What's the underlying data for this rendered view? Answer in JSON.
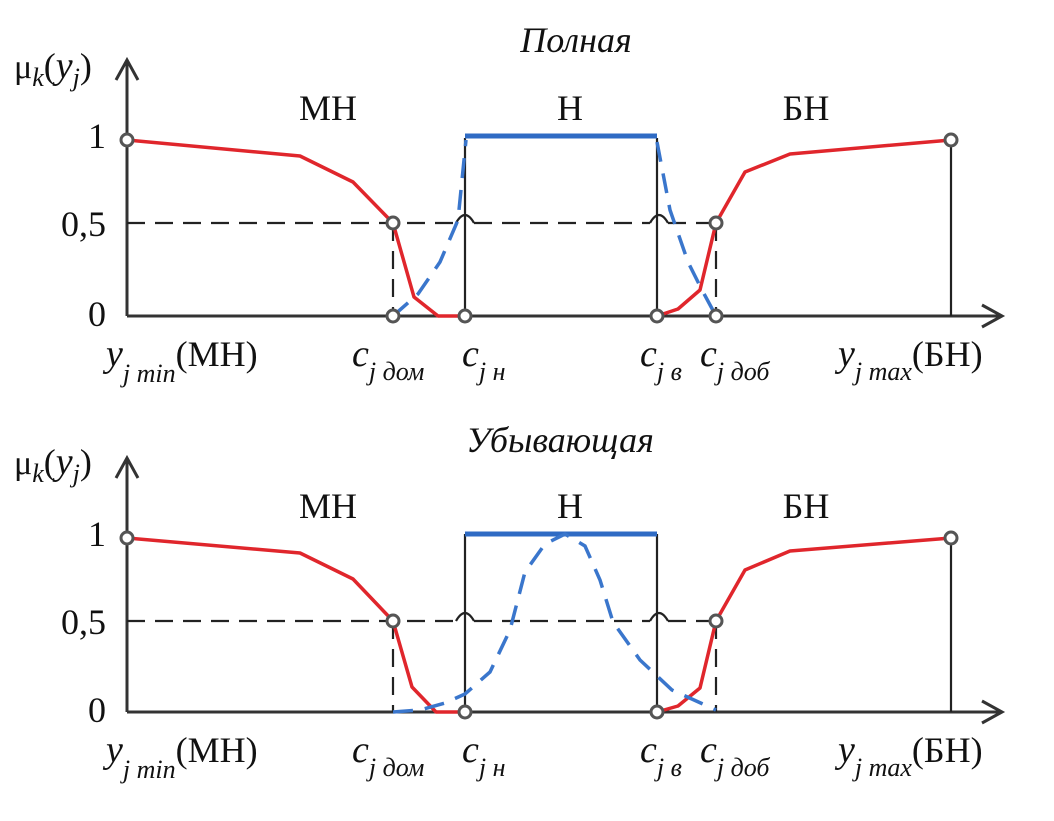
{
  "figure": {
    "panels": [
      {
        "title": "Полная",
        "y_axis": {
          "label": "μk(yj)",
          "ticks": [
            "1",
            "0,5",
            "0"
          ]
        },
        "sets": {
          "left": "МН",
          "middle": "Н",
          "right": "БН"
        },
        "x_labels": {
          "ymin": {
            "var": "y",
            "sub": "j min",
            "suffix": "(МН)"
          },
          "cdom": {
            "var": "c",
            "sub": "j дом"
          },
          "cn": {
            "var": "c",
            "sub": "j н"
          },
          "cv": {
            "var": "c",
            "sub": "j в"
          },
          "cdob": {
            "var": "c",
            "sub": "j доб"
          },
          "ymax": {
            "var": "y",
            "sub": "j max",
            "suffix": "(БН)"
          }
        }
      },
      {
        "title": "Убывающая",
        "y_axis": {
          "label": "μk(yj)",
          "ticks": [
            "1",
            "0,5",
            "0"
          ]
        },
        "sets": {
          "left": "МН",
          "middle": "Н",
          "right": "БН"
        },
        "x_labels": {
          "ymin": {
            "var": "y",
            "sub": "j min",
            "suffix": "(МН)"
          },
          "cdom": {
            "var": "c",
            "sub": "j дом"
          },
          "cn": {
            "var": "c",
            "sub": "j н"
          },
          "cv": {
            "var": "c",
            "sub": "j в"
          },
          "cdob": {
            "var": "c",
            "sub": "j доб"
          },
          "ymax": {
            "var": "y",
            "sub": "j max",
            "suffix": "(БН)"
          }
        }
      }
    ],
    "colors": {
      "red": "#e0262c",
      "blue": "#2f6bc4"
    }
  }
}
